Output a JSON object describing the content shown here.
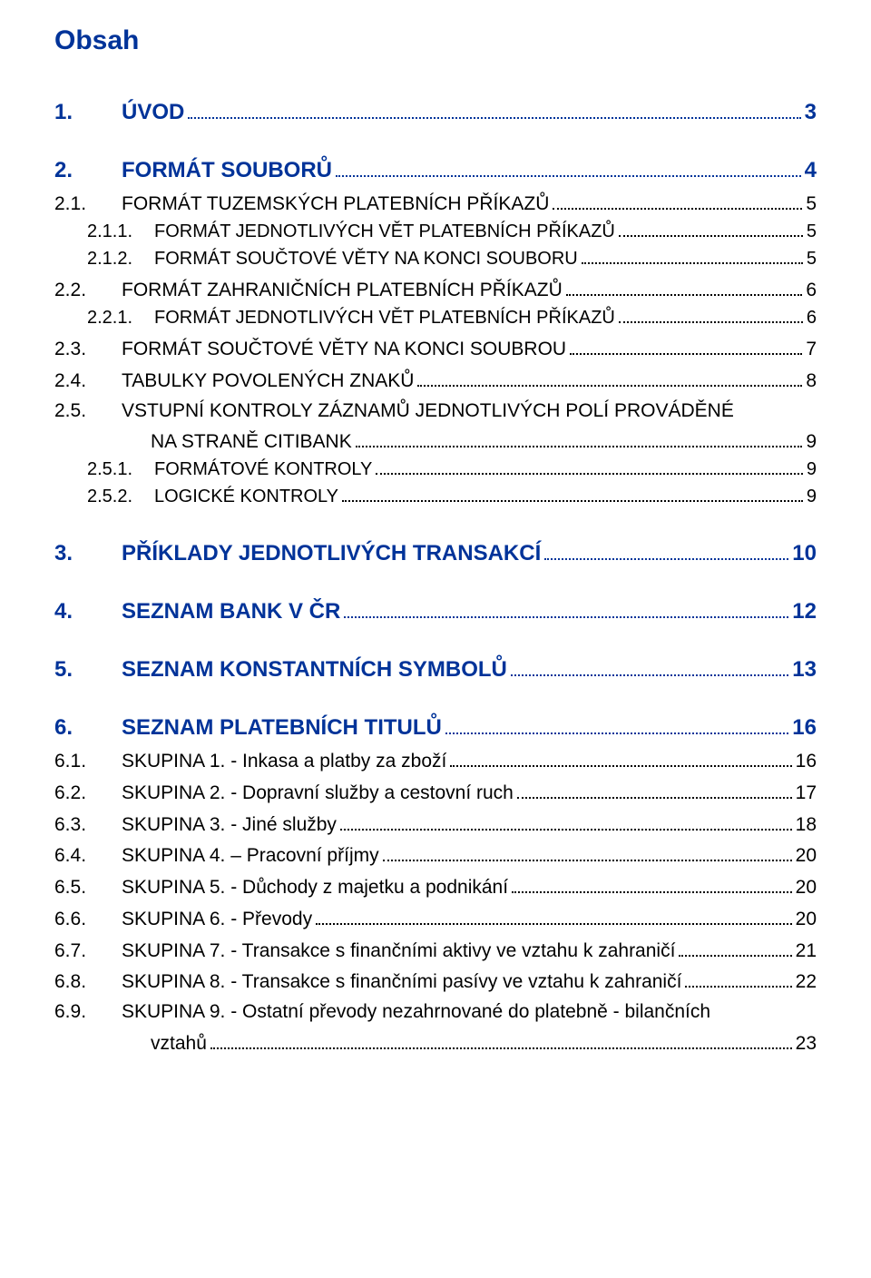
{
  "title": "Obsah",
  "colors": {
    "heading": "#003399",
    "body": "#000000",
    "background": "#ffffff"
  },
  "fontsizes": {
    "title_pt": 22,
    "level1_pt": 18,
    "level2_pt": 16,
    "level3_pt": 15
  },
  "toc": [
    {
      "level": 1,
      "num": "1.",
      "label": "ÚVOD",
      "page": "3"
    },
    {
      "level": 1,
      "num": "2.",
      "label": "FORMÁT SOUBORŮ",
      "page": "4"
    },
    {
      "level": 2,
      "num": "2.1.",
      "label": "FORMÁT TUZEMSKÝCH PLATEBNÍCH PŘÍKAZŮ",
      "page": "5"
    },
    {
      "level": 3,
      "num": "2.1.1.",
      "label": "FORMÁT JEDNOTLIVÝCH VĚT PLATEBNÍCH PŘÍKAZŮ",
      "page": "5"
    },
    {
      "level": 3,
      "num": "2.1.2.",
      "label": "FORMÁT SOUČTOVÉ VĚTY NA KONCI SOUBORU",
      "page": "5"
    },
    {
      "level": 2,
      "num": "2.2.",
      "label": "FORMÁT ZAHRANIČNÍCH PLATEBNÍCH PŘÍKAZŮ",
      "page": "6"
    },
    {
      "level": 3,
      "num": "2.2.1.",
      "label": "FORMÁT JEDNOTLIVÝCH VĚT PLATEBNÍCH PŘÍKAZŮ",
      "page": "6"
    },
    {
      "level": 2,
      "num": "2.3.",
      "label": "FORMÁT SOUČTOVÉ VĚTY NA KONCI SOUBROU",
      "page": "7"
    },
    {
      "level": 2,
      "num": "2.4.",
      "label": "TABULKY POVOLENÝCH ZNAKŮ",
      "page": "8"
    },
    {
      "level": 2,
      "num": "2.5.",
      "label": "VSTUPNÍ KONTROLY ZÁZNAMŮ JEDNOTLIVÝCH POLÍ PROVÁDĚNÉ",
      "page": null,
      "cont": {
        "label": "NA STRANĚ CITIBANK",
        "page": "9"
      }
    },
    {
      "level": 3,
      "num": "2.5.1.",
      "label": "FORMÁTOVÉ KONTROLY",
      "page": "9"
    },
    {
      "level": 3,
      "num": "2.5.2.",
      "label": "LOGICKÉ KONTROLY",
      "page": "9"
    },
    {
      "level": 1,
      "num": "3.",
      "label": "PŘÍKLADY JEDNOTLIVÝCH TRANSAKCÍ",
      "page": "10"
    },
    {
      "level": 1,
      "num": "4.",
      "label": "SEZNAM BANK V ČR",
      "page": "12"
    },
    {
      "level": 1,
      "num": "5.",
      "label": "SEZNAM KONSTANTNÍCH SYMBOLŮ",
      "page": "13"
    },
    {
      "level": 1,
      "num": "6.",
      "label": "SEZNAM PLATEBNÍCH TITULŮ",
      "page": "16"
    },
    {
      "level": 2,
      "num": "6.1.",
      "label": "SKUPINA 1. - Inkasa a platby za zboží",
      "page": "16"
    },
    {
      "level": 2,
      "num": "6.2.",
      "label": "SKUPINA 2. - Dopravní služby a cestovní ruch",
      "page": "17"
    },
    {
      "level": 2,
      "num": "6.3.",
      "label": "SKUPINA 3. - Jiné služby",
      "page": "18"
    },
    {
      "level": 2,
      "num": "6.4.",
      "label": "SKUPINA 4. – Pracovní příjmy",
      "page": "20"
    },
    {
      "level": 2,
      "num": "6.5.",
      "label": "SKUPINA 5. - Důchody z majetku a podnikání",
      "page": "20"
    },
    {
      "level": 2,
      "num": "6.6.",
      "label": "SKUPINA 6. - Převody",
      "page": "20"
    },
    {
      "level": 2,
      "num": "6.7.",
      "label": "SKUPINA 7. - Transakce s finančními aktivy ve vztahu k zahraničí",
      "page": "21"
    },
    {
      "level": 2,
      "num": "6.8.",
      "label": "SKUPINA 8. - Transakce s finančními pasívy ve vztahu k zahraničí",
      "page": "22"
    },
    {
      "level": 2,
      "num": "6.9.",
      "label": "SKUPINA 9. - Ostatní převody nezahrnované do platebně - bilančních",
      "page": null,
      "cont": {
        "label": "vztahů",
        "page": "23"
      }
    }
  ]
}
